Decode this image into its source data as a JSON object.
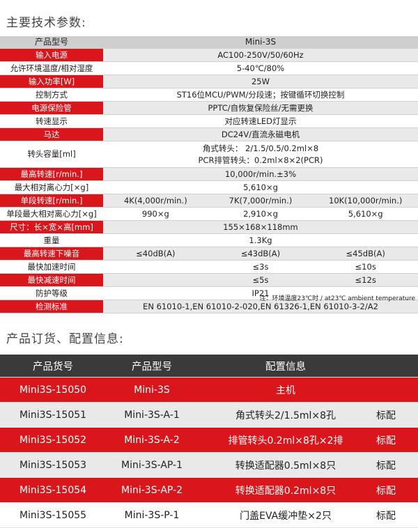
{
  "section1_title": "主要技术参数:",
  "section2_title": "产品订货、配置信息:",
  "spec": {
    "header": {
      "label": "产品型号",
      "value": "Mini-3S"
    },
    "rows": [
      {
        "label": "输入电源",
        "value": "AC100-250V/50/60Hz"
      },
      {
        "label": "允许环境温度/相对湿度",
        "value": "5-40℃/80%"
      },
      {
        "label": "输入功率[W]",
        "value": "25W"
      },
      {
        "label": "控制方式",
        "value": "ST16位MCU/PWM/分段速；按键循环切换控制"
      },
      {
        "label": "电源保险管",
        "value": "PPTC/自恢复保险丝/无需更换"
      },
      {
        "label": "转速显示",
        "value": "对应转速LED灯显示"
      },
      {
        "label": "马达",
        "value": "DC24V/直流永磁电机"
      },
      {
        "label": "转头容量[ml]",
        "value_line1": "角式转头： 2/1.5/0.5/0.2ml×8",
        "value_line2": "PCR排管转头：0.2ml×8×2(PCR)"
      },
      {
        "label": "最高转速[r/min.]",
        "value": "10,000r/min.±3%"
      },
      {
        "label": "最大相对离心力[×g]",
        "value": "5,610×g"
      },
      {
        "label": "单段转速[r/min.]",
        "values": [
          "4K(4,000r/min.)",
          "7K(7,000r/min.)",
          "10K(10,000r/min.)"
        ]
      },
      {
        "label": "单段最大相对离心力[×g]",
        "values": [
          "990×g",
          "2,910×g",
          "5,610×g"
        ]
      },
      {
        "label": "尺寸：长×宽×高[mm]",
        "value": "155×168×118mm"
      },
      {
        "label": "重量",
        "value": "1.3Kg"
      },
      {
        "label": "最高转速下噪音",
        "values": [
          "≤40dB(A)",
          "≤43dB(A)",
          "≤45dB(A)"
        ]
      },
      {
        "label": "最快加速时间",
        "values": [
          "",
          "≤3s",
          "≤10s"
        ]
      },
      {
        "label": "最快减速时间",
        "values": [
          "",
          "≤5s",
          "≤12s"
        ]
      },
      {
        "label": "防护等级",
        "value": "IP21"
      },
      {
        "label": "检测标准",
        "value": "EN 61010-1,EN 61010-2-020,EN 61326-1,EN 61010-3-2/A2"
      }
    ],
    "note": "注：环境温度23℃时 / at23℃ ambient temperature"
  },
  "order": {
    "headers": [
      "产品货号",
      "产品型号",
      "配置信息",
      ""
    ],
    "rows": [
      {
        "code": "Mini3S-15050",
        "model": "Mini-3S",
        "config": "主机",
        "tag": ""
      },
      {
        "code": "Mini3S-15051",
        "model": "Mini-3S-A-1",
        "config": "角式转头2/1.5ml×8孔",
        "tag": "标配"
      },
      {
        "code": "Mini3S-15052",
        "model": "Mini-3S-A-2",
        "config": "排管转头0.2ml×8孔×2排",
        "tag": "标配"
      },
      {
        "code": "Mini3S-15053",
        "model": "Mini-3S-AP-1",
        "config": "转换适配器0.5ml×8只",
        "tag": "标配"
      },
      {
        "code": "Mini3S-15054",
        "model": "Mini-3S-AP-2",
        "config": "转换适配器0.2ml×8只",
        "tag": "标配"
      },
      {
        "code": "Mini3S-15055",
        "model": "Mini-3S-P-1",
        "config": "门盖EVA缓冲垫×2只",
        "tag": "标配"
      }
    ]
  },
  "colors": {
    "accent_red": "#d8161c",
    "header_dark": "#3a3a3a",
    "row_gray": "#e9e9e9"
  }
}
